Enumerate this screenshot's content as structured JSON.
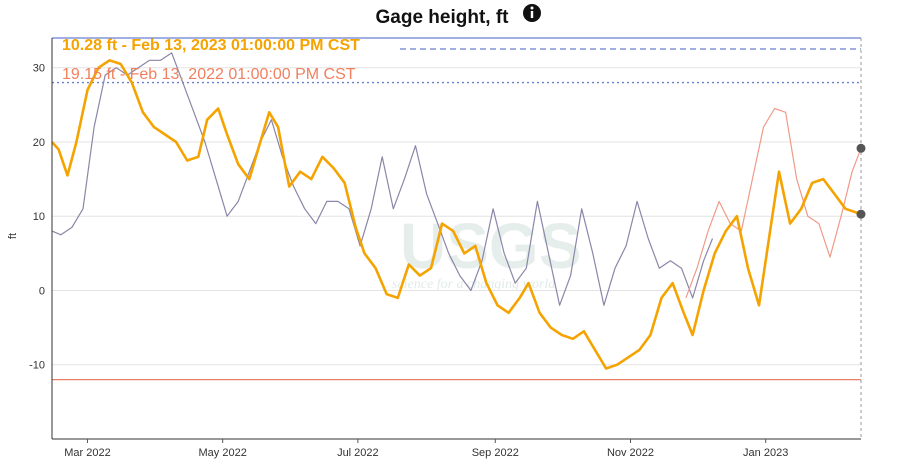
{
  "chart_data": {
    "type": "line",
    "title": "Gage height, ft",
    "ylabel": "ft",
    "ylim": [
      -20,
      34
    ],
    "yticks": [
      -10,
      0,
      10,
      20,
      30
    ],
    "x_range": [
      "2022-02-13",
      "2023-02-13"
    ],
    "xticks": [
      {
        "date": "2022-03-01",
        "label": "Mar 2022"
      },
      {
        "date": "2022-05-01",
        "label": "May 2022"
      },
      {
        "date": "2022-07-01",
        "label": "Jul 2022"
      },
      {
        "date": "2022-09-01",
        "label": "Sep 2022"
      },
      {
        "date": "2022-11-01",
        "label": "Nov 2022"
      },
      {
        "date": "2023-01-01",
        "label": "Jan 2023"
      }
    ],
    "legend": [
      {
        "text": "10.28 ft - Feb 13, 2023 01:00:00 PM CST",
        "color": "#f5a300"
      },
      {
        "text": "19.15 ft - Feb 13, 2022 01:00:00 PM CST",
        "color": "#f08060"
      }
    ],
    "watermark": {
      "logo": "USGS",
      "tagline": "science for a changing world"
    },
    "reference_lines": [
      {
        "y": 34,
        "color": "#6a7fd0",
        "style": "solid"
      },
      {
        "y": 28,
        "color": "#6a7fd0",
        "style": "dotted"
      },
      {
        "y": -12,
        "color": "#e8806a",
        "style": "solid"
      }
    ],
    "series": [
      {
        "color": "#f5a300",
        "points": [
          [
            "2022-02-13",
            20
          ],
          [
            "2022-02-16",
            19
          ],
          [
            "2022-02-20",
            15.5
          ],
          [
            "2022-02-24",
            20
          ],
          [
            "2022-03-01",
            27
          ],
          [
            "2022-03-06",
            30
          ],
          [
            "2022-03-11",
            31
          ],
          [
            "2022-03-16",
            30.5
          ],
          [
            "2022-03-21",
            28
          ],
          [
            "2022-03-26",
            24
          ],
          [
            "2022-03-31",
            22
          ],
          [
            "2022-04-05",
            21
          ],
          [
            "2022-04-10",
            20
          ],
          [
            "2022-04-15",
            17.5
          ],
          [
            "2022-04-20",
            18
          ],
          [
            "2022-04-24",
            23
          ],
          [
            "2022-04-29",
            24.5
          ],
          [
            "2022-05-03",
            21
          ],
          [
            "2022-05-08",
            17
          ],
          [
            "2022-05-13",
            15
          ],
          [
            "2022-05-17",
            19
          ],
          [
            "2022-05-22",
            24
          ],
          [
            "2022-05-26",
            22
          ],
          [
            "2022-05-31",
            14
          ],
          [
            "2022-06-05",
            16
          ],
          [
            "2022-06-10",
            15
          ],
          [
            "2022-06-15",
            18
          ],
          [
            "2022-06-20",
            16.5
          ],
          [
            "2022-06-25",
            14.5
          ],
          [
            "2022-06-30",
            8.5
          ],
          [
            "2022-07-04",
            5
          ],
          [
            "2022-07-09",
            3
          ],
          [
            "2022-07-14",
            -0.5
          ],
          [
            "2022-07-19",
            -1
          ],
          [
            "2022-07-24",
            3.5
          ],
          [
            "2022-07-29",
            2
          ],
          [
            "2022-08-03",
            3
          ],
          [
            "2022-08-08",
            9
          ],
          [
            "2022-08-13",
            8
          ],
          [
            "2022-08-18",
            5
          ],
          [
            "2022-08-23",
            6
          ],
          [
            "2022-08-28",
            1
          ],
          [
            "2022-09-02",
            -2
          ],
          [
            "2022-09-07",
            -3
          ],
          [
            "2022-09-12",
            -1
          ],
          [
            "2022-09-16",
            1
          ],
          [
            "2022-09-21",
            -3
          ],
          [
            "2022-09-26",
            -5
          ],
          [
            "2022-10-01",
            -6
          ],
          [
            "2022-10-06",
            -6.5
          ],
          [
            "2022-10-11",
            -5.5
          ],
          [
            "2022-10-16",
            -8
          ],
          [
            "2022-10-21",
            -10.5
          ],
          [
            "2022-10-26",
            -10
          ],
          [
            "2022-10-31",
            -9
          ],
          [
            "2022-11-05",
            -8
          ],
          [
            "2022-11-10",
            -6
          ],
          [
            "2022-11-15",
            -1
          ],
          [
            "2022-11-20",
            1
          ],
          [
            "2022-11-25",
            -3
          ],
          [
            "2022-11-29",
            -6
          ],
          [
            "2022-12-04",
            0
          ],
          [
            "2022-12-09",
            5
          ],
          [
            "2022-12-14",
            8
          ],
          [
            "2022-12-19",
            10
          ],
          [
            "2022-12-24",
            3
          ],
          [
            "2022-12-29",
            -2
          ],
          [
            "2023-01-03",
            8
          ],
          [
            "2023-01-07",
            16
          ],
          [
            "2023-01-12",
            9
          ],
          [
            "2023-01-17",
            11
          ],
          [
            "2023-01-22",
            14.5
          ],
          [
            "2023-01-27",
            15
          ],
          [
            "2023-02-01",
            13
          ],
          [
            "2023-02-06",
            11
          ],
          [
            "2023-02-13",
            10.28
          ]
        ]
      },
      {
        "color": "#8a86a8",
        "points": [
          [
            "2022-02-13",
            8
          ],
          [
            "2022-02-17",
            7.5
          ],
          [
            "2022-02-22",
            8.5
          ],
          [
            "2022-02-27",
            11
          ],
          [
            "2022-03-04",
            22
          ],
          [
            "2022-03-09",
            29
          ],
          [
            "2022-03-14",
            30
          ],
          [
            "2022-03-19",
            29
          ],
          [
            "2022-03-24",
            30
          ],
          [
            "2022-03-29",
            31
          ],
          [
            "2022-04-03",
            31
          ],
          [
            "2022-04-08",
            32
          ],
          [
            "2022-04-13",
            28
          ],
          [
            "2022-04-18",
            24
          ],
          [
            "2022-04-23",
            20
          ],
          [
            "2022-04-28",
            15
          ],
          [
            "2022-05-03",
            10
          ],
          [
            "2022-05-08",
            12
          ],
          [
            "2022-05-13",
            16
          ],
          [
            "2022-05-18",
            20
          ],
          [
            "2022-05-23",
            23
          ],
          [
            "2022-05-28",
            18
          ],
          [
            "2022-06-02",
            14
          ],
          [
            "2022-06-07",
            11
          ],
          [
            "2022-06-12",
            9
          ],
          [
            "2022-06-17",
            12
          ],
          [
            "2022-06-22",
            12
          ],
          [
            "2022-06-27",
            11
          ],
          [
            "2022-07-02",
            6
          ],
          [
            "2022-07-07",
            11
          ],
          [
            "2022-07-12",
            18
          ],
          [
            "2022-07-17",
            11
          ],
          [
            "2022-07-22",
            15
          ],
          [
            "2022-07-27",
            19.5
          ],
          [
            "2022-08-01",
            13
          ],
          [
            "2022-08-06",
            9
          ],
          [
            "2022-08-11",
            5
          ],
          [
            "2022-08-16",
            2
          ],
          [
            "2022-08-21",
            0
          ],
          [
            "2022-08-26",
            4
          ],
          [
            "2022-08-31",
            11
          ],
          [
            "2022-09-05",
            5
          ],
          [
            "2022-09-10",
            1
          ],
          [
            "2022-09-15",
            3
          ],
          [
            "2022-09-20",
            12
          ],
          [
            "2022-09-25",
            5
          ],
          [
            "2022-09-30",
            -2
          ],
          [
            "2022-10-05",
            2
          ],
          [
            "2022-10-10",
            11
          ],
          [
            "2022-10-15",
            5
          ],
          [
            "2022-10-20",
            -2
          ],
          [
            "2022-10-25",
            3
          ],
          [
            "2022-10-30",
            6
          ],
          [
            "2022-11-04",
            12
          ],
          [
            "2022-11-09",
            7
          ],
          [
            "2022-11-14",
            3
          ],
          [
            "2022-11-19",
            4
          ],
          [
            "2022-11-24",
            3
          ],
          [
            "2022-11-29",
            -1
          ],
          [
            "2022-12-04",
            4
          ],
          [
            "2022-12-08",
            7
          ]
        ]
      },
      {
        "color": "#f09a88",
        "points": [
          [
            "2022-11-26",
            -1
          ],
          [
            "2022-12-01",
            3
          ],
          [
            "2022-12-06",
            8
          ],
          [
            "2022-12-11",
            12
          ],
          [
            "2022-12-16",
            9
          ],
          [
            "2022-12-21",
            8
          ],
          [
            "2022-12-26",
            15
          ],
          [
            "2022-12-31",
            22
          ],
          [
            "2023-01-05",
            24.5
          ],
          [
            "2023-01-10",
            24
          ],
          [
            "2023-01-15",
            15
          ],
          [
            "2023-01-20",
            10
          ],
          [
            "2023-01-25",
            9
          ],
          [
            "2023-01-30",
            4.5
          ],
          [
            "2023-02-04",
            10
          ],
          [
            "2023-02-09",
            16
          ],
          [
            "2023-02-13",
            19.15
          ]
        ]
      }
    ],
    "end_markers": [
      10.28,
      19.15
    ]
  }
}
